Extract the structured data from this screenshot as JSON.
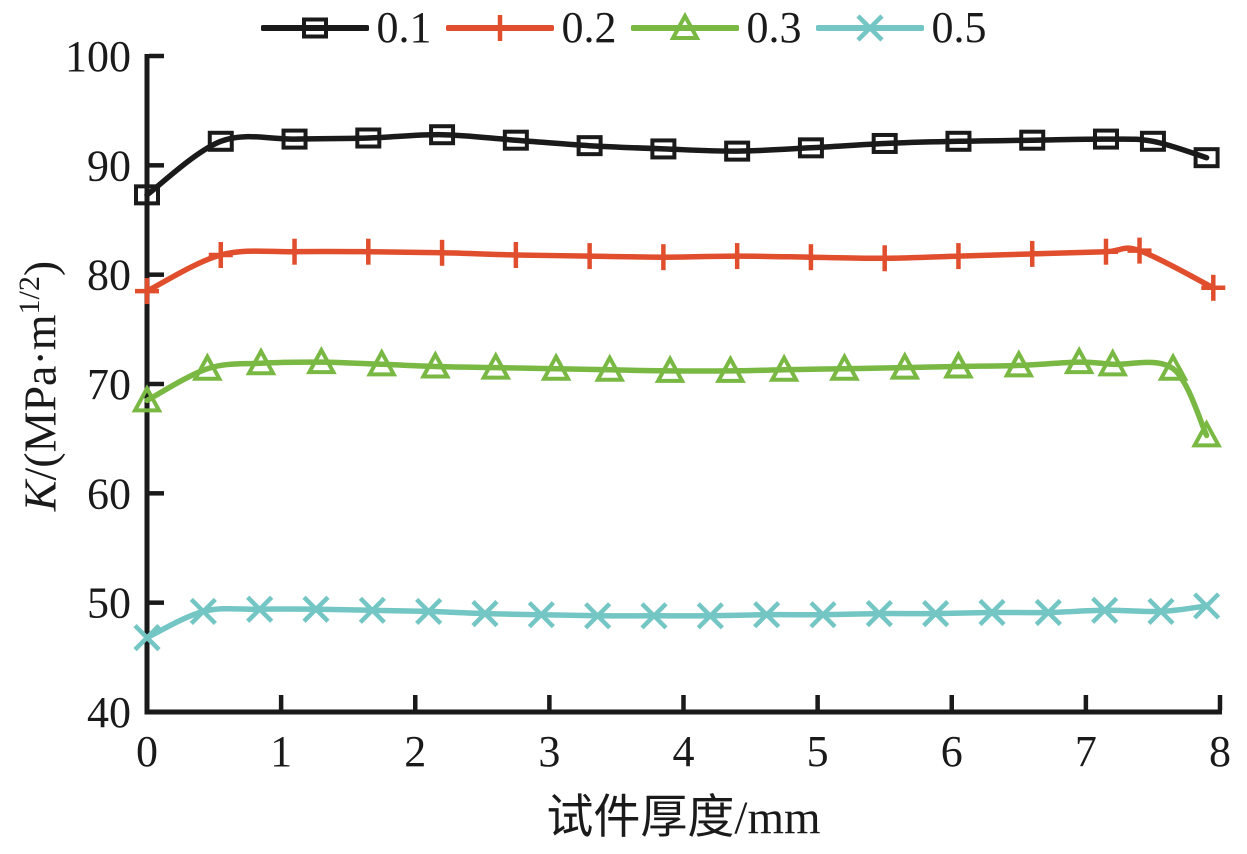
{
  "figure": {
    "background": "#ffffff",
    "axis_color": "#1a1a1a"
  },
  "ylabel_parts": {
    "k": "K",
    "mid": "/(MPa·m",
    "sup": "1/2",
    "suffix": ")"
  },
  "chart_data": {
    "type": "line",
    "title": "",
    "xlabel": "试件厚度/mm",
    "ylabel": "K/(MPa·m^1/2)",
    "xlim": [
      0,
      8
    ],
    "ylim": [
      40,
      100
    ],
    "xticks": [
      0,
      1,
      2,
      3,
      4,
      5,
      6,
      7,
      8
    ],
    "yticks": [
      40,
      50,
      60,
      70,
      80,
      90,
      100
    ],
    "grid": false,
    "legend_position": "top-center",
    "series": [
      {
        "name": "0.1",
        "color": "#1a1a1a",
        "marker": "square",
        "x": [
          0,
          0.55,
          1.1,
          1.65,
          2.2,
          2.75,
          3.3,
          3.85,
          4.4,
          4.95,
          5.5,
          6.05,
          6.6,
          7.15,
          7.5,
          7.9
        ],
        "y": [
          87.3,
          92.2,
          92.4,
          92.5,
          92.8,
          92.3,
          91.8,
          91.5,
          91.3,
          91.6,
          92.0,
          92.2,
          92.3,
          92.4,
          92.2,
          90.7
        ]
      },
      {
        "name": "0.2",
        "color": "#e04e2d",
        "marker": "plus",
        "x": [
          0,
          0.55,
          1.1,
          1.65,
          2.2,
          2.75,
          3.3,
          3.85,
          4.4,
          4.95,
          5.5,
          6.05,
          6.6,
          7.15,
          7.4,
          7.95
        ],
        "y": [
          78.5,
          81.8,
          82.1,
          82.1,
          82.0,
          81.8,
          81.7,
          81.6,
          81.7,
          81.6,
          81.5,
          81.7,
          81.9,
          82.1,
          82.2,
          78.8
        ]
      },
      {
        "name": "0.3",
        "color": "#78b843",
        "marker": "triangle",
        "x": [
          0,
          0.45,
          0.85,
          1.3,
          1.75,
          2.15,
          2.6,
          3.05,
          3.45,
          3.9,
          4.35,
          4.75,
          5.2,
          5.65,
          6.05,
          6.5,
          6.95,
          7.2,
          7.65,
          7.9
        ],
        "y": [
          68.5,
          71.4,
          71.9,
          72.0,
          71.8,
          71.6,
          71.5,
          71.4,
          71.3,
          71.2,
          71.2,
          71.3,
          71.4,
          71.5,
          71.6,
          71.7,
          72.0,
          71.8,
          71.4,
          65.3
        ]
      },
      {
        "name": "0.5",
        "color": "#74c6c4",
        "marker": "x",
        "x": [
          0,
          0.42,
          0.84,
          1.26,
          1.68,
          2.1,
          2.52,
          2.94,
          3.36,
          3.78,
          4.2,
          4.62,
          5.04,
          5.46,
          5.88,
          6.3,
          6.72,
          7.14,
          7.56,
          7.9
        ],
        "y": [
          46.8,
          49.2,
          49.4,
          49.4,
          49.3,
          49.2,
          49.0,
          48.9,
          48.8,
          48.8,
          48.8,
          48.9,
          48.9,
          49.0,
          49.0,
          49.1,
          49.1,
          49.3,
          49.2,
          49.7
        ]
      }
    ]
  }
}
